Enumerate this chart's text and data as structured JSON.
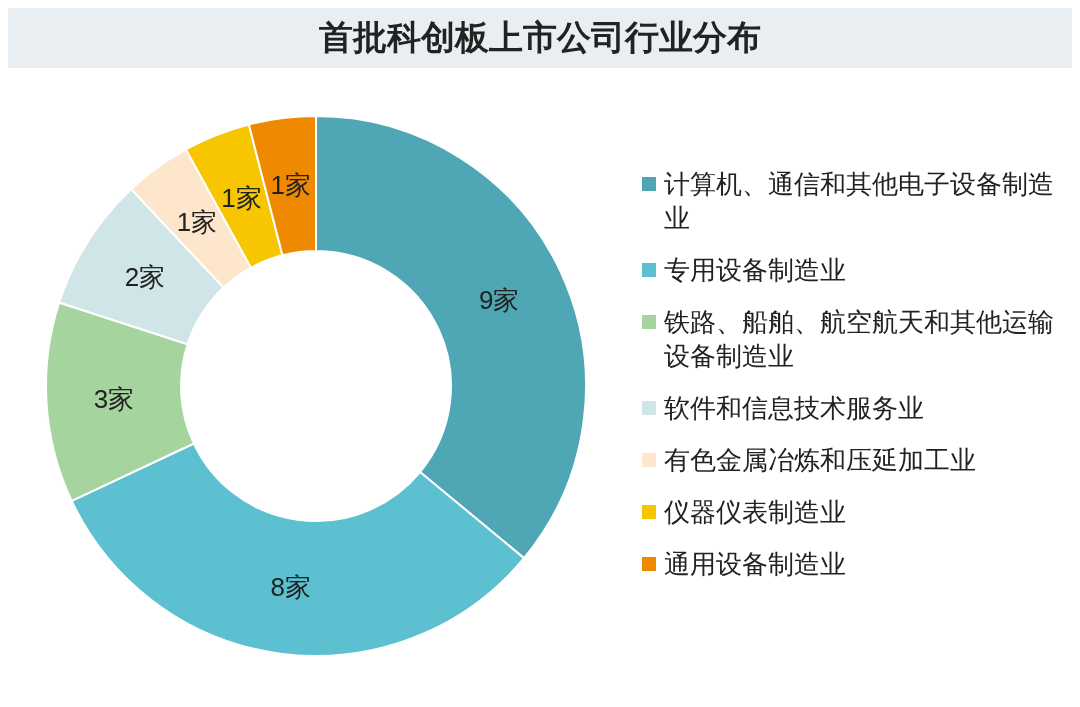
{
  "chart_data": {
    "type": "donut",
    "title": "首批科创板上市公司行业分布",
    "categories": [
      "计算机、通信和其他电子设备制造业",
      "专用设备制造业",
      "铁路、船舶、航空航天和其他运输设备制造业",
      "软件和信息技术服务业",
      "有色金属冶炼和压延加工业",
      "仪器仪表制造业",
      "通用设备制造业"
    ],
    "values": [
      9,
      8,
      3,
      2,
      1,
      1,
      1
    ],
    "colors": [
      "#4fa7b6",
      "#5cc0d1",
      "#a6d49f",
      "#cfe5e7",
      "#fde6cc",
      "#f7c600",
      "#ef8a00"
    ],
    "value_labels": [
      "9家",
      "8家",
      "3家",
      "2家",
      "1家",
      "1家",
      "1家"
    ],
    "legend": "right"
  }
}
